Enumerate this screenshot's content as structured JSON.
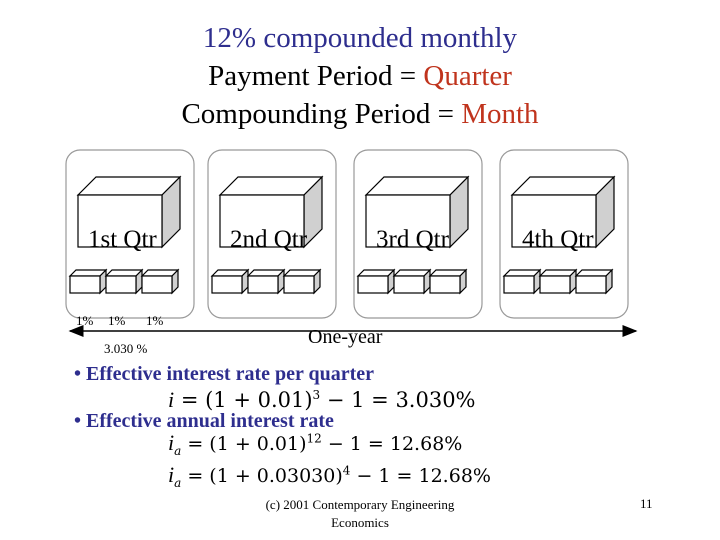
{
  "title": {
    "line1": "12% compounded monthly",
    "line2_prefix": "Payment Period = ",
    "line2_accent": "Quarter",
    "line3_prefix": "Compounding Period = ",
    "line3_accent": "Month"
  },
  "quarters": [
    {
      "label": "1st Qtr"
    },
    {
      "label": "2nd Qtr"
    },
    {
      "label": "3rd Qtr"
    },
    {
      "label": "4th Qtr"
    }
  ],
  "monthly_rates": [
    "1%",
    "1%",
    "1%"
  ],
  "quarterly_effective": "3.030 %",
  "timeline_label": "One-year",
  "bullets": {
    "quarter": "• Effective interest rate per quarter",
    "annual": "• Effective annual interest rate"
  },
  "formulas": {
    "quarter": {
      "var": "i",
      "base": "= (1 + 0.01)",
      "exp": "3",
      "rest": " − 1 = 3.030%"
    },
    "annual1": {
      "var": "i",
      "sub": "a",
      "base": "= (1 + 0.01)",
      "exp": "12",
      "rest": " − 1 = 12.68%"
    },
    "annual2": {
      "var": "i",
      "sub": "a",
      "base": "= (1 + 0.03030)",
      "exp": "4",
      "rest": " − 1 = 12.68%"
    }
  },
  "footer": {
    "source": "(c) 2001 Contemporary Engineering Economics",
    "page": "11"
  },
  "colors": {
    "title_blue": "#2e2e8e",
    "accent_red": "#c0341d",
    "cube_shade": "#d0d0d0"
  }
}
